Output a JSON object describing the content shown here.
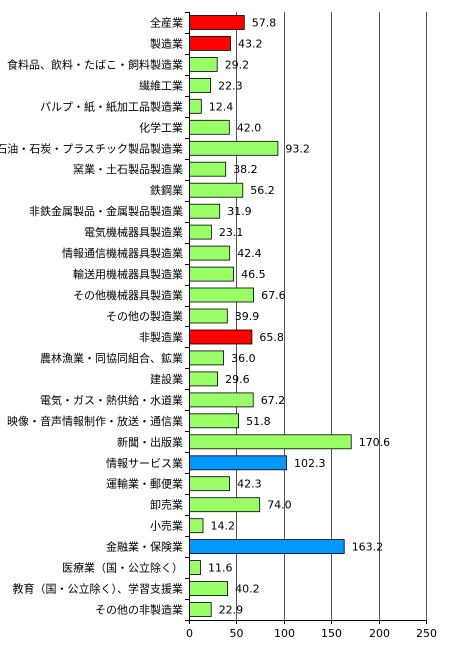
{
  "chart_data": {
    "type": "bar",
    "orientation": "horizontal",
    "title": "",
    "xlabel": "",
    "ylabel": "",
    "xlim": [
      0,
      250
    ],
    "x_ticks": [
      0,
      50,
      100,
      150,
      200,
      250
    ],
    "grid": "vertical",
    "legend": "none",
    "colors": {
      "red": "#ff0000",
      "green": "#99ff66",
      "blue": "#0099ff"
    },
    "categories": [
      "全産業",
      "製造業",
      "食料品、飲料・たばこ・飼料製造業",
      "繊維工業",
      "パルプ・紙・紙加工品製造業",
      "化学工業",
      "石油・石炭・プラスチック製品製造業",
      "窯業・土石製品製造業",
      "鉄鋼業",
      "非鉄金属製品・金属製品製造業",
      "電気機械器具製造業",
      "情報通信機械器具製造業",
      "輸送用機械器具製造業",
      "その他機械器具製造業",
      "その他の製造業",
      "非製造業",
      "農林漁業・同協同組合、鉱業",
      "建設業",
      "電気・ガス・熱供給・水道業",
      "映像・音声情報制作・放送・通信業",
      "新聞・出版業",
      "情報サービス業",
      "運輸業・郵便業",
      "卸売業",
      "小売業",
      "金融業・保険業",
      "医療業（国・公立除く）",
      "教育（国・公立除く）、学習支援業",
      "その他の非製造業"
    ],
    "values": [
      57.8,
      43.2,
      29.2,
      22.3,
      12.4,
      42.0,
      93.2,
      38.2,
      56.2,
      31.9,
      23.1,
      42.4,
      46.5,
      67.6,
      39.9,
      65.8,
      36.0,
      29.6,
      67.2,
      51.8,
      170.6,
      102.3,
      42.3,
      74.0,
      14.2,
      163.2,
      11.6,
      40.2,
      22.9
    ],
    "value_labels": [
      "57.8",
      "43.2",
      "29.2",
      "22.3",
      "12.4",
      "42.0",
      "93.2",
      "38.2",
      "56.2",
      "31.9",
      "23.1",
      "42.4",
      "46.5",
      "67.6",
      "39.9",
      "65.8",
      "36.0",
      "29.6",
      "67.2",
      "51.8",
      "170.6",
      "102.3",
      "42.3",
      "74.0",
      "14.2",
      "163.2",
      "11.6",
      "40.2",
      "22.9"
    ],
    "bar_colors": [
      "red",
      "red",
      "green",
      "green",
      "green",
      "green",
      "green",
      "green",
      "green",
      "green",
      "green",
      "green",
      "green",
      "green",
      "green",
      "red",
      "green",
      "green",
      "green",
      "green",
      "green",
      "blue",
      "green",
      "green",
      "green",
      "blue",
      "green",
      "green",
      "green"
    ]
  }
}
